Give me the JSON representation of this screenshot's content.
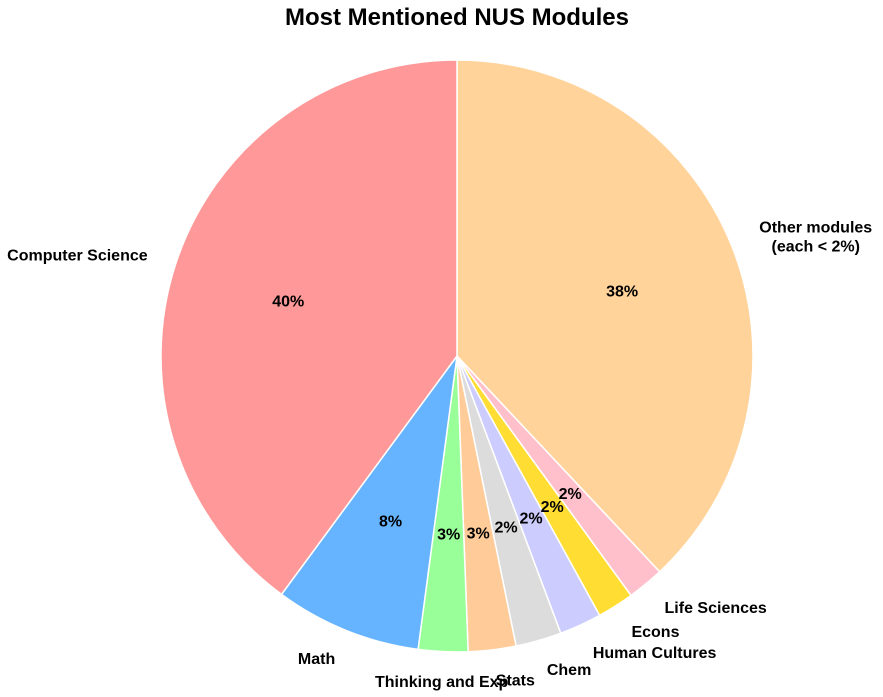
{
  "chart_data": {
    "type": "pie",
    "title": "Most Mentioned NUS Modules",
    "start": "top",
    "direction": "clockwise",
    "slices": [
      {
        "label": "Other modules\n(each < 2%)",
        "value": 38,
        "pct_label": "38%",
        "color": "#ffd39a"
      },
      {
        "label": "Life Sciences",
        "value": 2,
        "pct_label": "2%",
        "color": "#ffc0cb"
      },
      {
        "label": "Econs",
        "value": 2,
        "pct_label": "2%",
        "color": "#ffdd33"
      },
      {
        "label": "Human Cultures",
        "value": 2.3,
        "pct_label": "2%",
        "color": "#ccccff"
      },
      {
        "label": "Chem",
        "value": 2.5,
        "pct_label": "2%",
        "color": "#dcdcdc"
      },
      {
        "label": "Stats",
        "value": 2.6,
        "pct_label": "3%",
        "color": "#ffcc99"
      },
      {
        "label": "Thinking and Exp",
        "value": 2.7,
        "pct_label": "3%",
        "color": "#99ff99"
      },
      {
        "label": "Math",
        "value": 8,
        "pct_label": "8%",
        "color": "#66b3ff"
      },
      {
        "label": "Computer Science",
        "value": 39.9,
        "pct_label": "40%",
        "color": "#ff9999"
      }
    ]
  }
}
